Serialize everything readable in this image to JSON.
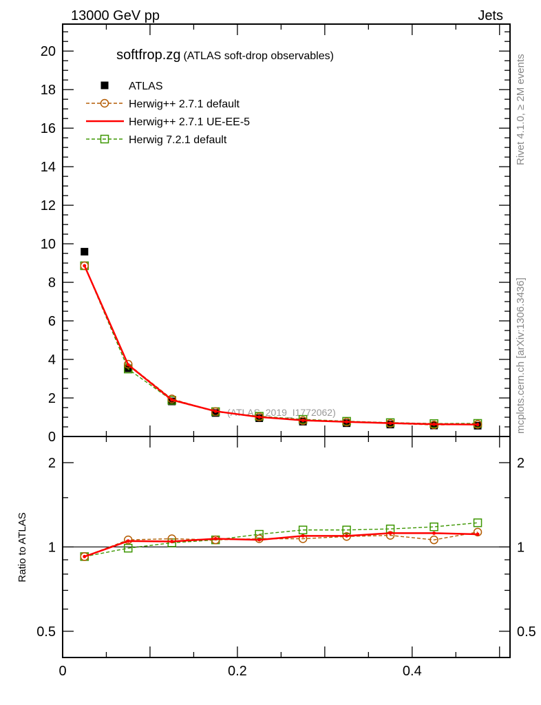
{
  "header": {
    "energy": "13000 GeV pp",
    "category": "Jets"
  },
  "side_labels": {
    "rivet": "Rivet 4.1.0, ≥ 2M events",
    "mcplots": "mcplots.cern.ch [arXiv:1306.3436]"
  },
  "chart_data": [
    {
      "type": "line",
      "title": "softfrop.zg",
      "subtitle": "(ATLAS soft-drop observables)",
      "annotation": "(ATLAS_2019_I1772062)",
      "xlabel": "",
      "ylabel": "",
      "xlim": [
        0,
        0.512
      ],
      "ylim": [
        0,
        21.4
      ],
      "yticks": [
        0,
        2,
        4,
        6,
        8,
        10,
        12,
        14,
        16,
        18,
        20
      ],
      "yticklabels": [
        "0",
        "2",
        "4",
        "6",
        "8",
        "10",
        "12",
        "14",
        "16",
        "18",
        "20"
      ],
      "x": [
        0.025,
        0.075,
        0.125,
        0.175,
        0.225,
        0.275,
        0.325,
        0.375,
        0.425,
        0.475
      ],
      "legend_position": "top-left",
      "series": [
        {
          "name": "ATLAS",
          "style": "data",
          "color": "#000000",
          "values": [
            9.59,
            3.54,
            1.82,
            1.22,
            0.95,
            0.77,
            0.69,
            0.62,
            0.57,
            0.56
          ]
        },
        {
          "name": "Herwig++ 2.7.1 default",
          "style": "dashed-circle",
          "color": "#b35a00",
          "values": [
            8.86,
            3.75,
            1.95,
            1.29,
            1.02,
            0.82,
            0.75,
            0.68,
            0.6,
            0.63
          ]
        },
        {
          "name": "Herwig++ 2.7.1 UE-EE-5",
          "style": "solid",
          "color": "#ff0000",
          "values": [
            8.86,
            3.72,
            1.9,
            1.31,
            1.01,
            0.84,
            0.76,
            0.69,
            0.64,
            0.62
          ]
        },
        {
          "name": "Herwig 7.2.1 default",
          "style": "dashed-square",
          "color": "#3c9600",
          "values": [
            8.86,
            3.5,
            1.88,
            1.29,
            1.05,
            0.89,
            0.79,
            0.72,
            0.67,
            0.68
          ]
        }
      ]
    },
    {
      "type": "line",
      "ylabel": "Ratio to ATLAS",
      "yscale": "log",
      "ylim": [
        0.403,
        2.48
      ],
      "xlim": [
        0,
        0.512
      ],
      "xticks": [
        0,
        0.2,
        0.4
      ],
      "xticklabels": [
        "0",
        "0.2",
        "0.4"
      ],
      "yticks": [
        0.5,
        1,
        2
      ],
      "yticklabels": [
        "0.5",
        "1",
        "2"
      ],
      "x": [
        0.025,
        0.075,
        0.125,
        0.175,
        0.225,
        0.275,
        0.325,
        0.375,
        0.425,
        0.475
      ],
      "series": [
        {
          "name": "Herwig++ 2.7.1 default",
          "style": "dashed-circle",
          "color": "#b35a00",
          "values": [
            0.924,
            1.06,
            1.07,
            1.06,
            1.07,
            1.07,
            1.09,
            1.1,
            1.06,
            1.13
          ]
        },
        {
          "name": "Herwig++ 2.7.1 UE-EE-5",
          "style": "solid",
          "color": "#ff0000",
          "values": [
            0.924,
            1.05,
            1.046,
            1.07,
            1.06,
            1.095,
            1.095,
            1.12,
            1.12,
            1.11
          ]
        },
        {
          "name": "Herwig 7.2.1 default",
          "style": "dashed-square",
          "color": "#3c9600",
          "values": [
            0.924,
            0.99,
            1.035,
            1.06,
            1.11,
            1.15,
            1.15,
            1.16,
            1.18,
            1.22
          ]
        }
      ]
    }
  ]
}
